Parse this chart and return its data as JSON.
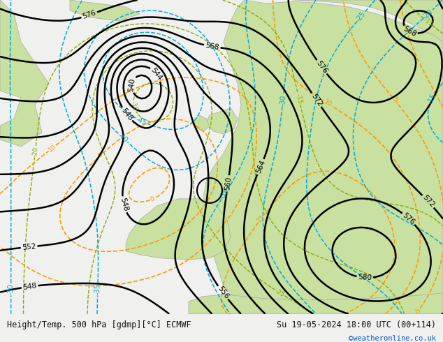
{
  "title_left": "Height/Temp. 500 hPa [gdmp][°C] ECMWF",
  "title_right": "Su 19-05-2024 18:00 UTC (00+114)",
  "watermark": "©weatheronline.co.uk",
  "bottom_bar_color": "#f0f0ee",
  "bottom_text_color": "#111111",
  "watermark_color": "#0055cc",
  "fig_width": 6.34,
  "fig_height": 4.9,
  "ocean_color": "#dde8ee",
  "land_color": "#c8e0a0",
  "coast_color": "#aaaaaa",
  "z500_color": "black",
  "temp_color": "#00aadd",
  "z850_color": "#88aa00",
  "slp_color": "#ff9900"
}
